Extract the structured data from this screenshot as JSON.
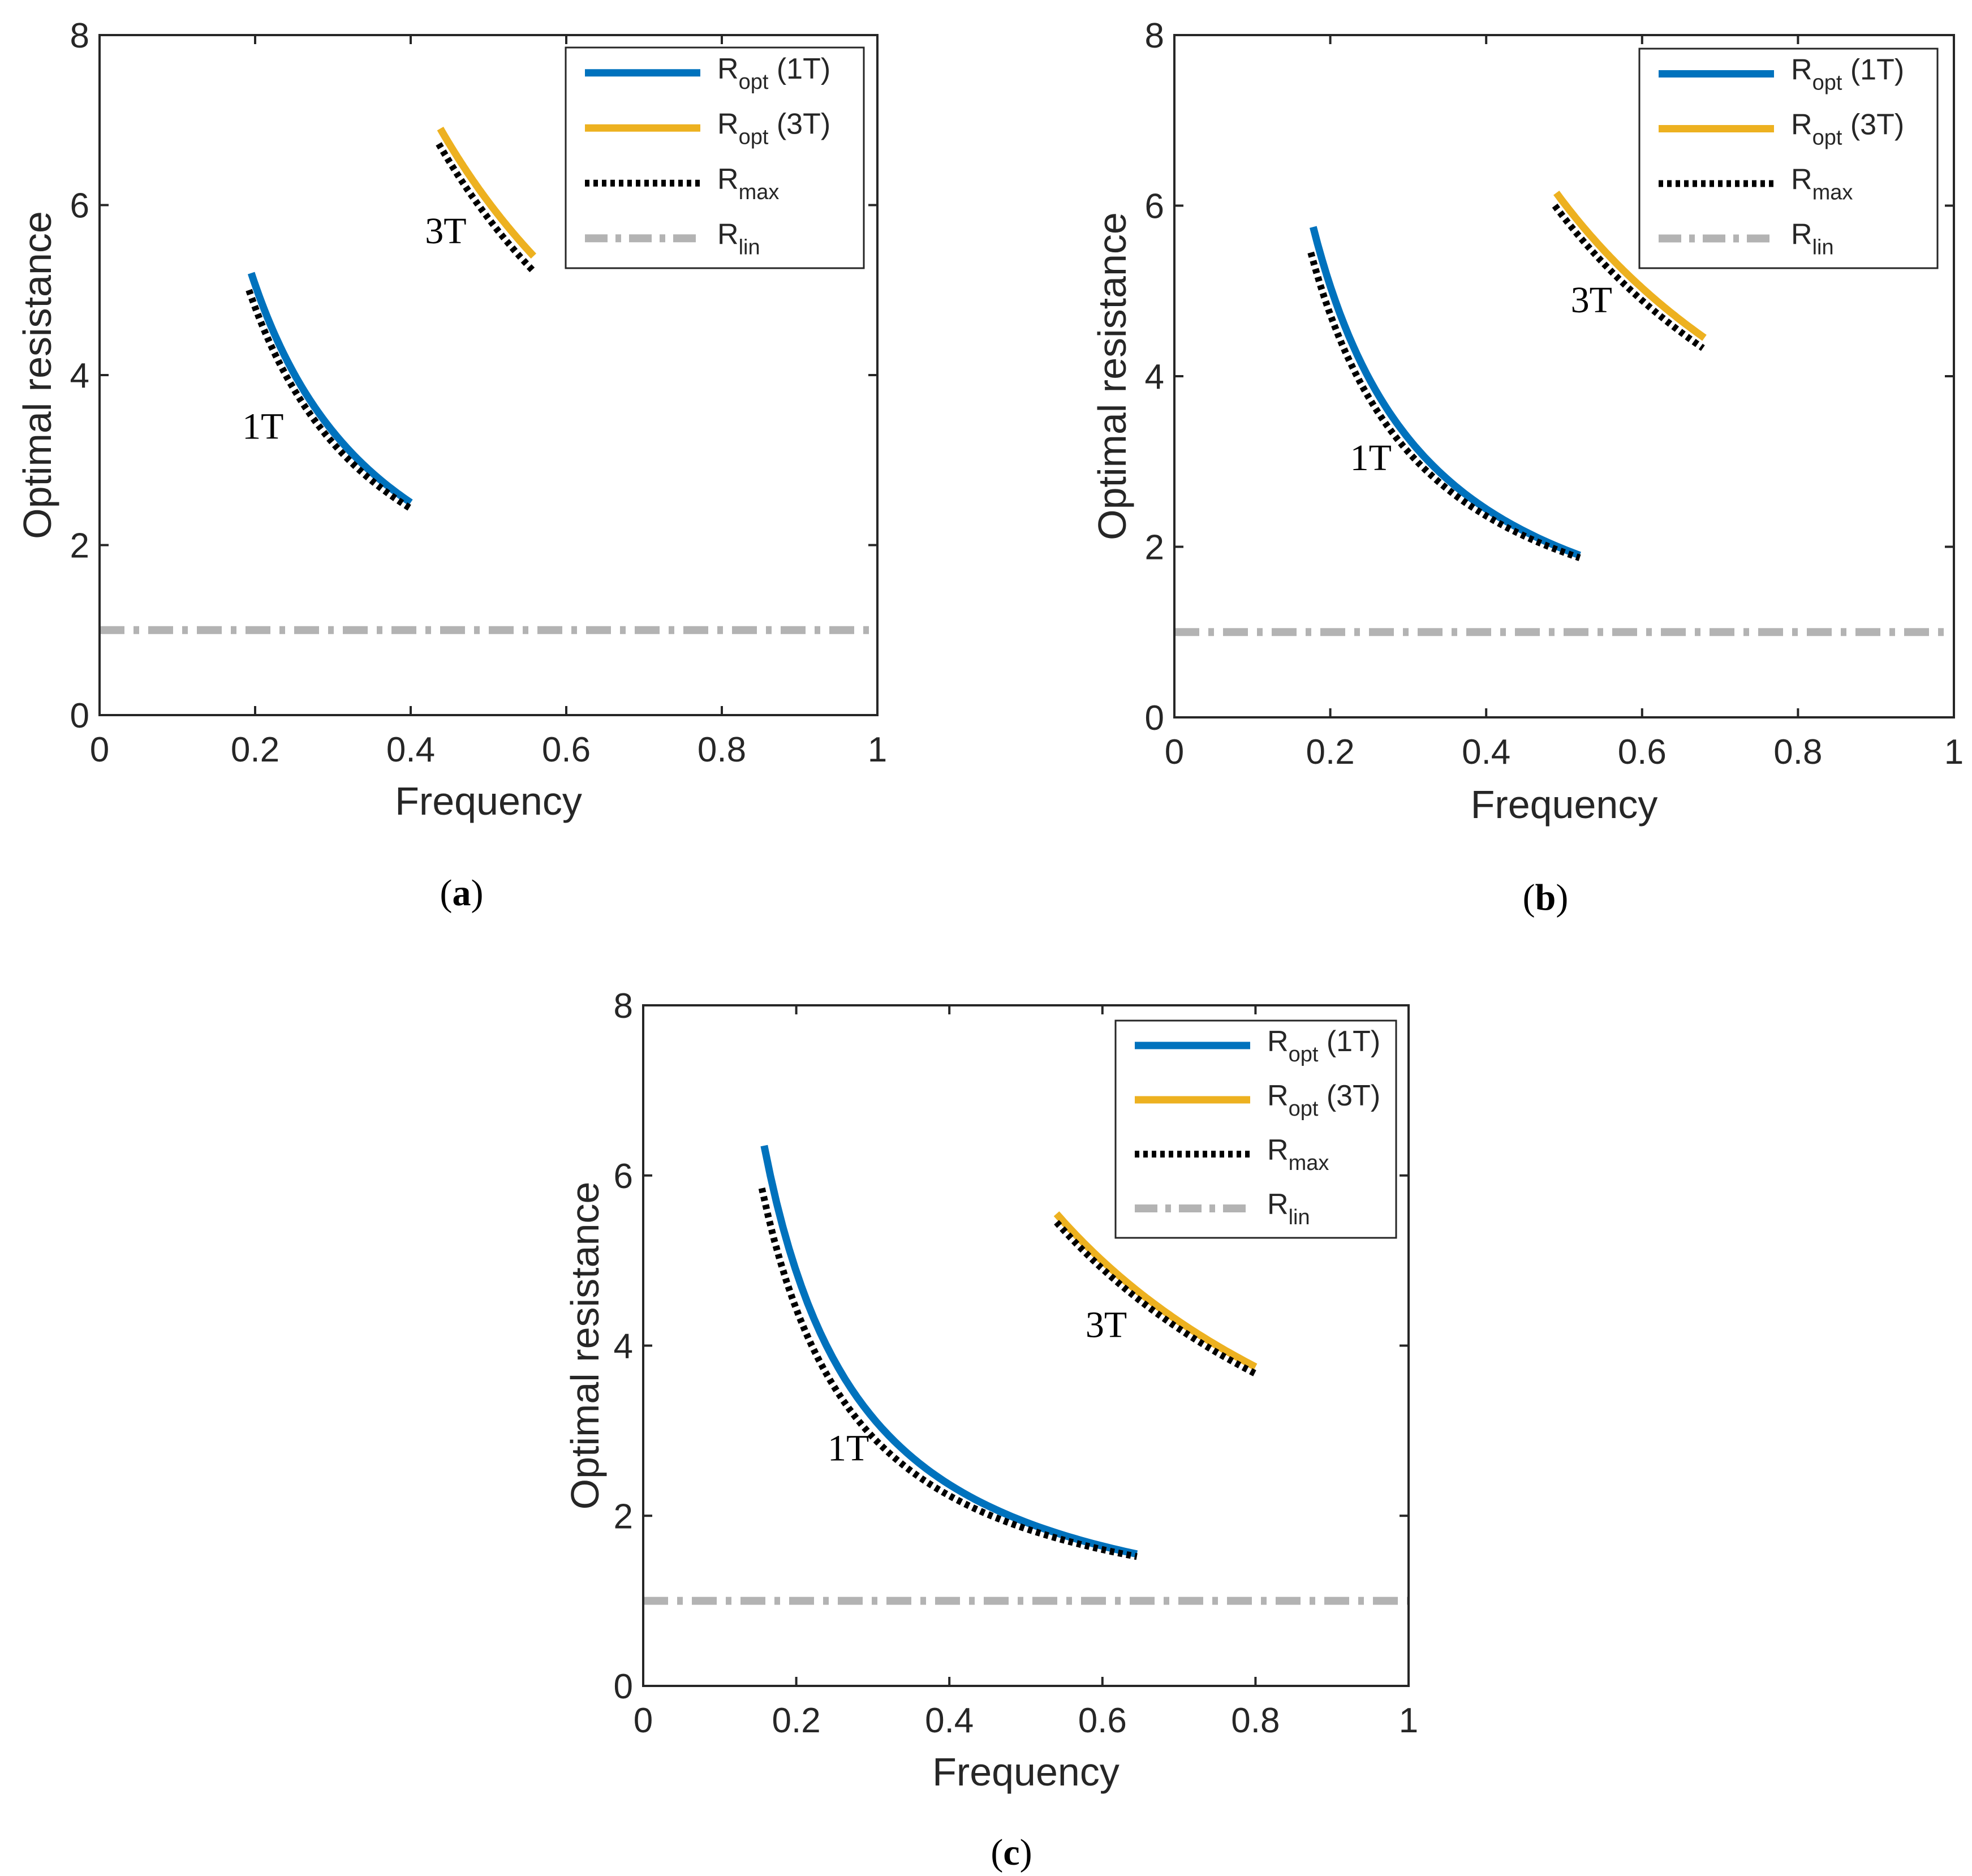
{
  "series_colors": {
    "ropt_1t": "#0072BD",
    "ropt_3t": "#EDB120",
    "rmax": "#000000",
    "rlin": "#B3B3B3"
  },
  "legend": [
    {
      "key": "ropt_1t",
      "base": "R",
      "sub": "opt",
      "suffix": " (1T)"
    },
    {
      "key": "ropt_3t",
      "base": "R",
      "sub": "opt",
      "suffix": " (3T)"
    },
    {
      "key": "rmax",
      "base": "R",
      "sub": "max",
      "suffix": ""
    },
    {
      "key": "rlin",
      "base": "R",
      "sub": "lin",
      "suffix": ""
    }
  ],
  "chart_data": [
    {
      "type": "line",
      "panel_label": "(a)",
      "xlabel": "Frequency",
      "ylabel": "Optimal resistance",
      "xlim": [
        0,
        1
      ],
      "ylim": [
        0,
        8
      ],
      "xticks": [
        "0",
        "0.2",
        "0.4",
        "0.6",
        "0.8",
        "1"
      ],
      "yticks": [
        "0",
        "2",
        "4",
        "6",
        "8"
      ],
      "annotations": [
        {
          "text": "1T",
          "x": 0.21,
          "y": 3.25
        },
        {
          "text": "3T",
          "x": 0.445,
          "y": 5.55
        }
      ],
      "series": [
        {
          "name": "Ropt (1T)",
          "key": "ropt_1t",
          "x0": 0.195,
          "x1": 0.4,
          "y0": 5.2,
          "y1": 2.5,
          "k": 1.1
        },
        {
          "name": "Ropt (3T)",
          "key": "ropt_3t",
          "x0": 0.438,
          "x1": 0.558,
          "y0": 6.9,
          "y1": 5.4,
          "k": 1.0
        },
        {
          "name": "Rmax (1T)",
          "key": "rmax",
          "x0": 0.192,
          "x1": 0.4,
          "y0": 5.0,
          "y1": 2.43,
          "k": 1.1
        },
        {
          "name": "Rmax (3T)",
          "key": "rmax",
          "x0": 0.436,
          "x1": 0.558,
          "y0": 6.72,
          "y1": 5.22,
          "k": 1.0
        },
        {
          "name": "Rlin",
          "key": "rlin",
          "x0": 0,
          "x1": 1,
          "y0": 1.0,
          "y1": 1.0,
          "k": 1.0
        }
      ]
    },
    {
      "type": "line",
      "panel_label": "(b)",
      "xlabel": "Frequency",
      "ylabel": "Optimal resistance",
      "xlim": [
        0,
        1
      ],
      "ylim": [
        0,
        8
      ],
      "xticks": [
        "0",
        "0.2",
        "0.4",
        "0.6",
        "0.8",
        "1"
      ],
      "yticks": [
        "0",
        "2",
        "4",
        "6",
        "8"
      ],
      "annotations": [
        {
          "text": "1T",
          "x": 0.252,
          "y": 2.9
        },
        {
          "text": "3T",
          "x": 0.535,
          "y": 4.75
        }
      ],
      "series": [
        {
          "name": "Ropt (1T)",
          "key": "ropt_1t",
          "x0": 0.178,
          "x1": 0.52,
          "y0": 5.75,
          "y1": 1.9,
          "k": 1.2
        },
        {
          "name": "Ropt (3T)",
          "key": "ropt_3t",
          "x0": 0.49,
          "x1": 0.68,
          "y0": 6.15,
          "y1": 4.45,
          "k": 1.0
        },
        {
          "name": "Rmax (1T)",
          "key": "rmax",
          "x0": 0.175,
          "x1": 0.52,
          "y0": 5.45,
          "y1": 1.87,
          "k": 1.2
        },
        {
          "name": "Rmax (3T)",
          "key": "rmax",
          "x0": 0.488,
          "x1": 0.678,
          "y0": 6.0,
          "y1": 4.33,
          "k": 1.0
        },
        {
          "name": "Rlin",
          "key": "rlin",
          "x0": 0,
          "x1": 1,
          "y0": 1.0,
          "y1": 1.0,
          "k": 1.0
        }
      ]
    },
    {
      "type": "line",
      "panel_label": "(c)",
      "xlabel": "Frequency",
      "ylabel": "Optimal resistance",
      "xlim": [
        0,
        1
      ],
      "ylim": [
        0,
        8
      ],
      "xticks": [
        "0",
        "0.2",
        "0.4",
        "0.6",
        "0.8",
        "1"
      ],
      "yticks": [
        "0",
        "2",
        "4",
        "6",
        "8"
      ],
      "annotations": [
        {
          "text": "1T",
          "x": 0.268,
          "y": 2.65
        },
        {
          "text": "3T",
          "x": 0.605,
          "y": 4.1
        }
      ],
      "series": [
        {
          "name": "Ropt (1T)",
          "key": "ropt_1t",
          "x0": 0.158,
          "x1": 0.645,
          "y0": 6.35,
          "y1": 1.55,
          "k": 1.25
        },
        {
          "name": "Ropt (3T)",
          "key": "ropt_3t",
          "x0": 0.54,
          "x1": 0.8,
          "y0": 5.55,
          "y1": 3.75,
          "k": 1.0
        },
        {
          "name": "Rmax (1T)",
          "key": "rmax",
          "x0": 0.155,
          "x1": 0.645,
          "y0": 5.85,
          "y1": 1.52,
          "k": 1.25
        },
        {
          "name": "Rmax (3T)",
          "key": "rmax",
          "x0": 0.54,
          "x1": 0.8,
          "y0": 5.45,
          "y1": 3.67,
          "k": 1.0
        },
        {
          "name": "Rlin",
          "key": "rlin",
          "x0": 0,
          "x1": 1,
          "y0": 1.0,
          "y1": 1.0,
          "k": 1.0
        }
      ]
    }
  ]
}
